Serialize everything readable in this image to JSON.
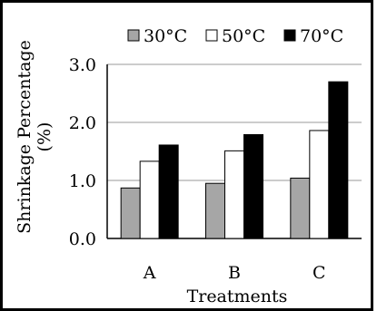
{
  "chart_data": {
    "type": "bar",
    "title": "",
    "xlabel": "Treatments",
    "ylabel_line1": "Shrinkage Percentage",
    "ylabel_line2": "(%)",
    "categories": [
      "A",
      "B",
      "C"
    ],
    "series": [
      {
        "name": "30°C",
        "values": [
          0.87,
          0.95,
          1.04
        ],
        "color": "#a6a6a6"
      },
      {
        "name": "50°C",
        "values": [
          1.33,
          1.51,
          1.86
        ],
        "color": "#ffffff"
      },
      {
        "name": "70°C",
        "values": [
          1.61,
          1.79,
          2.7
        ],
        "color": "#000000"
      }
    ],
    "ylim": [
      0,
      3
    ],
    "yticks": [
      "0.0",
      "1.0",
      "2.0",
      "3.0"
    ],
    "ytick_values": [
      0,
      1,
      2,
      3
    ],
    "grid": true,
    "legend": "top"
  }
}
